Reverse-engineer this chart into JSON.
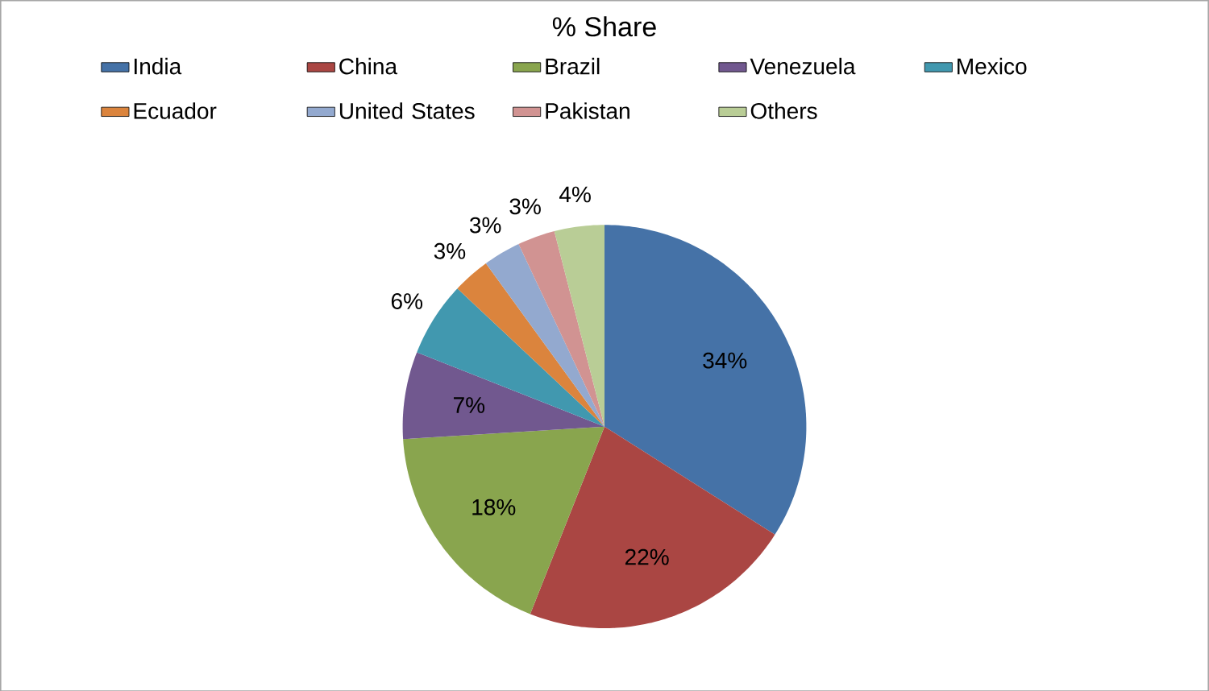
{
  "chart_data": {
    "type": "pie",
    "title": "% Share",
    "categories": [
      "India",
      "China",
      "Brazil",
      "Venezuela",
      "Mexico",
      "Ecuador",
      "United States",
      "Pakistan",
      "Others"
    ],
    "values": [
      34,
      22,
      18,
      7,
      6,
      3,
      3,
      3,
      4
    ],
    "colors": [
      "#4572a7",
      "#aa4643",
      "#89a54e",
      "#71588f",
      "#4198af",
      "#db843d",
      "#93a9cf",
      "#d19392",
      "#b9cd96"
    ],
    "value_labels": [
      "34%",
      "22%",
      "18%",
      "7%",
      "6%",
      "3%",
      "3%",
      "3%",
      "4%"
    ],
    "legend": "top"
  }
}
